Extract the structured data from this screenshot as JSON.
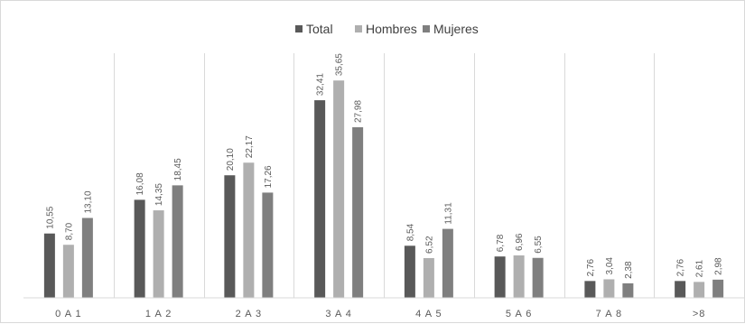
{
  "chart_data": {
    "type": "bar",
    "title": "",
    "xlabel": "",
    "ylabel": "",
    "ylim": [
      0,
      40
    ],
    "grid": "vertical category separators",
    "legend": "top-center",
    "categories": [
      "0 A 1",
      "1 A 2",
      "2 A 3",
      "3 A 4",
      "4 A 5",
      "5 A 6",
      "7 A 8",
      ">8"
    ],
    "series": [
      {
        "name": "Total",
        "color": "#595959",
        "values": [
          10.55,
          16.08,
          20.1,
          32.41,
          8.54,
          6.78,
          2.76,
          2.76
        ],
        "labels": [
          "10,55",
          "16,08",
          "20,10",
          "32,41",
          "8,54",
          "6,78",
          "2,76",
          "2,76"
        ]
      },
      {
        "name": "Hombres",
        "color": "#afafaf",
        "values": [
          8.7,
          14.35,
          22.17,
          35.65,
          6.52,
          6.96,
          3.04,
          2.61
        ],
        "labels": [
          "8,70",
          "14,35",
          "22,17",
          "35,65",
          "6,52",
          "6,96",
          "3,04",
          "2,61"
        ]
      },
      {
        "name": "Mujeres",
        "color": "#7f7f7f",
        "values": [
          13.1,
          18.45,
          17.26,
          27.98,
          11.31,
          6.55,
          2.38,
          2.98
        ],
        "labels": [
          "13,10",
          "18,45",
          "17,26",
          "27,98",
          "11,31",
          "6,55",
          "2,38",
          "2,98"
        ]
      }
    ]
  }
}
